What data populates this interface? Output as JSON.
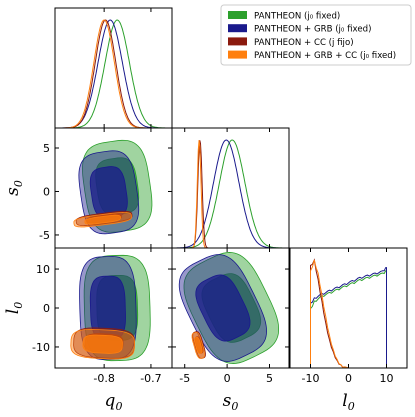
{
  "chart_data": {
    "type": "corner",
    "parameters": [
      {
        "symbol": "q",
        "sub": "0",
        "ticks": [
          "-0.8",
          "-0.7"
        ],
        "tick_values": [
          -0.8,
          -0.7
        ],
        "range": [
          -0.905,
          -0.655
        ]
      },
      {
        "symbol": "s",
        "sub": "0",
        "ticks": [
          "-5",
          "0",
          "5"
        ],
        "tick_values": [
          -5,
          0,
          5
        ],
        "range": [
          -6.5,
          7.3
        ]
      },
      {
        "symbol": "l",
        "sub": "0",
        "ticks": [
          "-10",
          "0",
          "10"
        ],
        "tick_values": [
          -10,
          0,
          10
        ],
        "range": [
          -15.4,
          15.4
        ]
      }
    ],
    "legend": {
      "placement": "top-right",
      "entries": [
        {
          "label": "PANTHEON (j₀ fixed)",
          "color": "#2ca02c"
        },
        {
          "label": "PANTHEON + GRB (j₀ fixed)",
          "color": "#1a1a8c"
        },
        {
          "label": "PANTHEON + CC (j fijo)",
          "color": "#8b1a0e"
        },
        {
          "label": "PANTHEON + GRB + CC (j₀ fixed)",
          "color": "#ff7f0e"
        }
      ]
    },
    "series": [
      {
        "color": "#2ca02c",
        "q0": {
          "mean": -0.772,
          "sd": 0.026
        },
        "s0": {
          "mean": 0.6,
          "sd": 1.5
        },
        "l0_curve": {
          "x": [
            -10,
            -9,
            -7,
            -5,
            -3,
            -1,
            1,
            3,
            5,
            7,
            9,
            9.8
          ],
          "y": [
            0.55,
            0.62,
            0.67,
            0.7,
            0.73,
            0.76,
            0.79,
            0.82,
            0.84,
            0.86,
            0.88,
            0.9
          ]
        },
        "contours_q0_s0": {
          "center": [
            -0.772,
            0.6
          ],
          "half_width": [
            0.07,
            5.2
          ],
          "rotation": 0.25
        },
        "contours_q0_l0": {
          "center": [
            -0.772,
            0
          ],
          "half_width": [
            0.07,
            13.5
          ],
          "rotation": 0.05
        },
        "contours_s0_l0": {
          "center": [
            0.5,
            0
          ],
          "half_width": [
            4.5,
            13.8
          ],
          "rotation": 0.95
        }
      },
      {
        "color": "#1a1a8c",
        "q0": {
          "mean": -0.787,
          "sd": 0.026
        },
        "s0": {
          "mean": -0.1,
          "sd": 1.5
        },
        "l0_curve": {
          "x": [
            -10,
            -9,
            -7,
            -5,
            -3,
            -1,
            1,
            3,
            5,
            7,
            9,
            9.8
          ],
          "y": [
            0.6,
            0.65,
            0.69,
            0.72,
            0.75,
            0.78,
            0.81,
            0.84,
            0.86,
            0.88,
            0.9,
            0.93
          ]
        },
        "contours_q0_s0": {
          "center": [
            -0.79,
            -0.1
          ],
          "half_width": [
            0.06,
            4.7
          ],
          "rotation": 0.25
        },
        "contours_q0_l0": {
          "center": [
            -0.792,
            0
          ],
          "half_width": [
            0.06,
            13.2
          ],
          "rotation": 0.05
        },
        "contours_s0_l0": {
          "center": [
            -0.5,
            0
          ],
          "half_width": [
            4.0,
            13.5
          ],
          "rotation": 0.95
        }
      },
      {
        "color": "#8b1a0e",
        "q0": {
          "mean": -0.797,
          "sd": 0.022
        },
        "s0": {
          "mean": -3.2,
          "sd": 0.25
        },
        "l0_curve": {
          "x": [
            -10,
            -9,
            -8,
            -7,
            -6,
            -5,
            -4,
            -3,
            -2,
            -1,
            0
          ],
          "y": [
            0.95,
            1.0,
            0.82,
            0.62,
            0.42,
            0.26,
            0.15,
            0.07,
            0.03,
            0.01,
            0
          ]
        },
        "contours_q0_s0": {
          "center": [
            -0.8,
            -3.1
          ],
          "half_width": [
            0.06,
            0.6
          ],
          "rotation": 0.22
        },
        "contours_q0_l0": {
          "center": [
            -0.8,
            -9
          ],
          "half_width": [
            0.065,
            3.8
          ],
          "rotation": -0.08
        },
        "contours_s0_l0": {
          "center": [
            -3.3,
            -9.5
          ],
          "half_width": [
            0.5,
            3.5
          ],
          "rotation": 0.5
        }
      },
      {
        "color": "#ff7f0e",
        "q0": {
          "mean": -0.8,
          "sd": 0.022
        },
        "s0": {
          "mean": -3.3,
          "sd": 0.22
        },
        "l0_curve": {
          "x": [
            -10,
            -9,
            -8,
            -7,
            -6,
            -5,
            -4,
            -3,
            -2,
            -1,
            0
          ],
          "y": [
            0.9,
            1.0,
            0.88,
            0.68,
            0.48,
            0.3,
            0.17,
            0.08,
            0.03,
            0.01,
            0
          ]
        },
        "contours_q0_s0": {
          "center": [
            -0.803,
            -3.25
          ],
          "half_width": [
            0.062,
            0.6
          ],
          "rotation": 0.22
        },
        "contours_q0_l0": {
          "center": [
            -0.803,
            -9.3
          ],
          "half_width": [
            0.068,
            3.7
          ],
          "rotation": -0.08
        },
        "contours_s0_l0": {
          "center": [
            -3.4,
            -9.6
          ],
          "half_width": [
            0.5,
            3.4
          ],
          "rotation": 0.5
        }
      }
    ]
  }
}
